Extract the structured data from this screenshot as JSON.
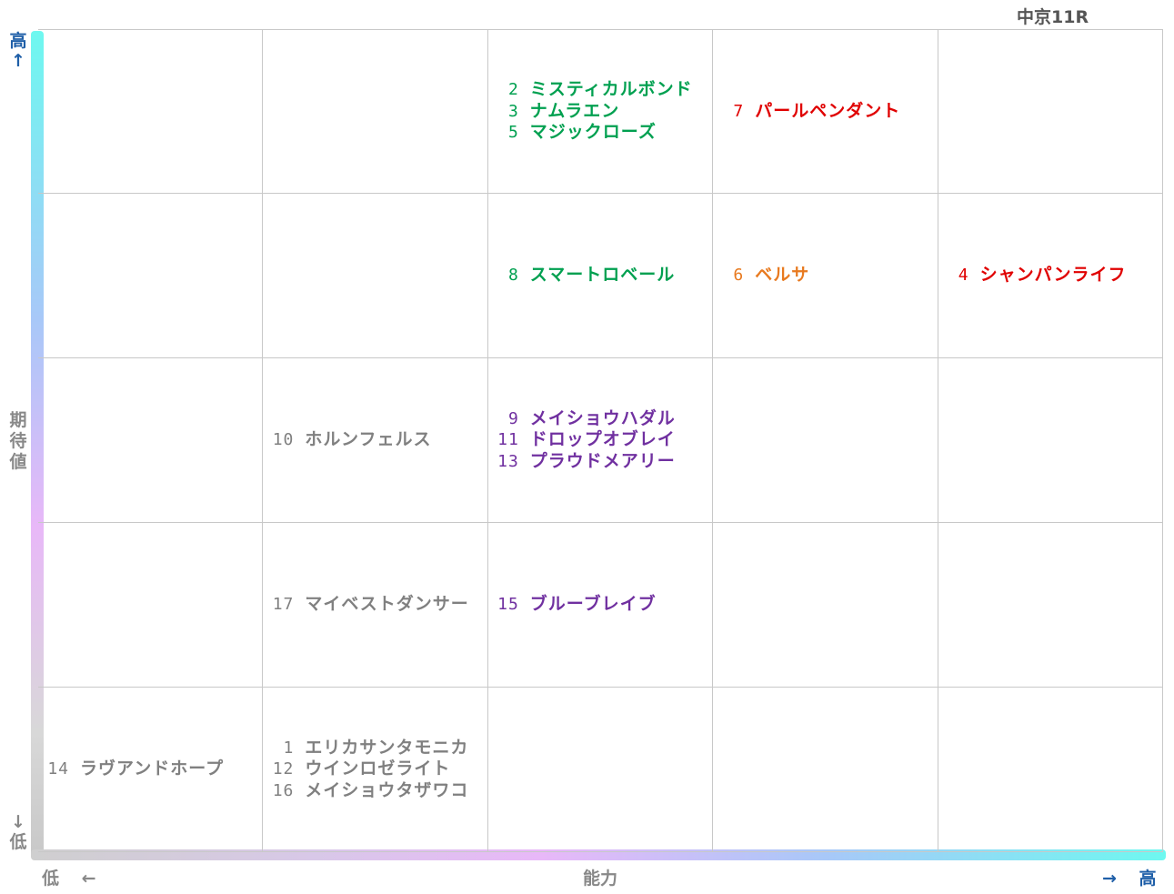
{
  "race_title": "中京11R",
  "axes": {
    "y_label": "期待値",
    "y_high": "高",
    "y_high_arrow": "↑",
    "y_low": "低",
    "y_low_arrow": "↓",
    "x_label": "能力",
    "x_low": "低",
    "x_low_arrow": "←",
    "x_high": "高",
    "x_high_arrow": "→"
  },
  "colors": {
    "green": "#00a050",
    "red": "#e00000",
    "orange": "#e87a20",
    "purple": "#7030a0",
    "gray": "#808080"
  },
  "chart_data": {
    "type": "table",
    "x_axis": "能力",
    "y_axis": "期待値",
    "columns": 5,
    "rows": 5,
    "note_row_index": "row 0 = top (期待値 高), col 0 = left (能力 低)",
    "cells": [
      {
        "row": 0,
        "col": 2,
        "color": "green",
        "entries": [
          {
            "num": "2",
            "name": "ミスティカルボンド"
          },
          {
            "num": "3",
            "name": "ナムラエン"
          },
          {
            "num": "5",
            "name": "マジックローズ"
          }
        ]
      },
      {
        "row": 0,
        "col": 3,
        "color": "red",
        "entries": [
          {
            "num": "7",
            "name": "パールペンダント"
          }
        ]
      },
      {
        "row": 1,
        "col": 2,
        "color": "green",
        "entries": [
          {
            "num": "8",
            "name": "スマートロベール"
          }
        ]
      },
      {
        "row": 1,
        "col": 3,
        "color": "orange",
        "entries": [
          {
            "num": "6",
            "name": "ベルサ"
          }
        ]
      },
      {
        "row": 1,
        "col": 4,
        "color": "red",
        "entries": [
          {
            "num": "4",
            "name": "シャンパンライフ"
          }
        ]
      },
      {
        "row": 2,
        "col": 1,
        "color": "gray",
        "entries": [
          {
            "num": "10",
            "name": "ホルンフェルス"
          }
        ]
      },
      {
        "row": 2,
        "col": 2,
        "color": "purple",
        "entries": [
          {
            "num": "9",
            "name": "メイショウハダル"
          },
          {
            "num": "11",
            "name": "ドロップオブレイ"
          },
          {
            "num": "13",
            "name": "プラウドメアリー"
          }
        ]
      },
      {
        "row": 3,
        "col": 1,
        "color": "gray",
        "entries": [
          {
            "num": "17",
            "name": "マイベストダンサー"
          }
        ]
      },
      {
        "row": 3,
        "col": 2,
        "color": "purple",
        "entries": [
          {
            "num": "15",
            "name": "ブルーブレイブ"
          }
        ]
      },
      {
        "row": 4,
        "col": 0,
        "color": "gray",
        "entries": [
          {
            "num": "14",
            "name": "ラヴアンドホープ"
          }
        ]
      },
      {
        "row": 4,
        "col": 1,
        "color": "gray",
        "entries": [
          {
            "num": "1",
            "name": "エリカサンタモニカ"
          },
          {
            "num": "12",
            "name": "ウインロゼライト"
          },
          {
            "num": "16",
            "name": "メイショウタザワコ"
          }
        ]
      }
    ]
  }
}
